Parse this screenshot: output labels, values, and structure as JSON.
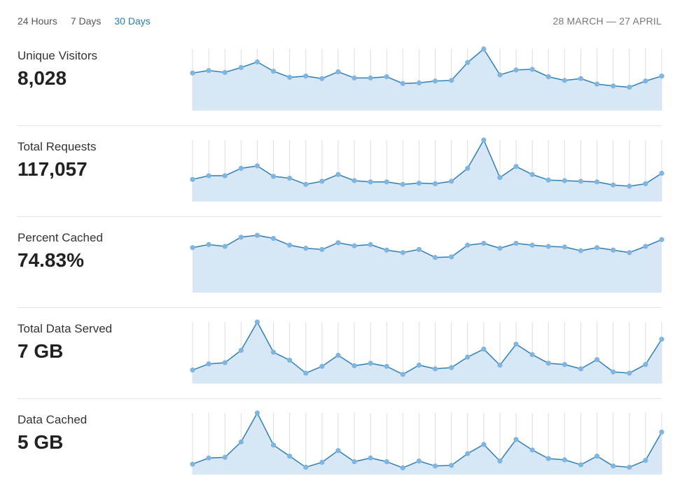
{
  "tabs": [
    {
      "label": "24 Hours",
      "active": false
    },
    {
      "label": "7 Days",
      "active": false
    },
    {
      "label": "30 Days",
      "active": true
    }
  ],
  "date_range": "28 MARCH — 27 APRIL",
  "colors": {
    "line": "#2f7fb5",
    "fill": "#d7e7f6",
    "dot": "#7fb5de",
    "grid": "#dddddd",
    "active_tab": "#2a7bb7"
  },
  "metrics": [
    {
      "label": "Unique Visitors",
      "value": "8,028"
    },
    {
      "label": "Total Requests",
      "value": "117,057"
    },
    {
      "label": "Percent Cached",
      "value": "74.83%"
    },
    {
      "label": "Total Data Served",
      "value": "7 GB"
    },
    {
      "label": "Data Cached",
      "value": "5 GB"
    }
  ],
  "chart_data": [
    {
      "type": "area",
      "title": "Unique Visitors",
      "x_count": 30,
      "ylim": [
        0,
        100
      ],
      "grid": true,
      "values": [
        61,
        65,
        62,
        70,
        79,
        64,
        54,
        56,
        52,
        63,
        53,
        53,
        55,
        44,
        45,
        48,
        49,
        78,
        100,
        58,
        66,
        67,
        55,
        49,
        52,
        43,
        40,
        38,
        48,
        56
      ]
    },
    {
      "type": "area",
      "title": "Total Requests",
      "x_count": 30,
      "ylim": [
        0,
        100
      ],
      "grid": true,
      "values": [
        36,
        42,
        42,
        54,
        58,
        41,
        38,
        28,
        33,
        44,
        34,
        32,
        32,
        28,
        30,
        29,
        33,
        54,
        100,
        39,
        57,
        44,
        35,
        34,
        33,
        32,
        27,
        25,
        29,
        46
      ]
    },
    {
      "type": "area",
      "title": "Percent Cached",
      "x_count": 30,
      "ylim": [
        0,
        100
      ],
      "grid": false,
      "values": [
        73,
        78,
        75,
        90,
        93,
        88,
        77,
        72,
        70,
        81,
        76,
        78,
        69,
        65,
        70,
        57,
        58,
        77,
        80,
        72,
        80,
        77,
        75,
        74,
        68,
        73,
        69,
        65,
        75,
        86
      ]
    },
    {
      "type": "area",
      "title": "Total Data Served",
      "x_count": 30,
      "ylim": [
        0,
        100
      ],
      "grid": true,
      "values": [
        22,
        32,
        34,
        54,
        100,
        51,
        38,
        17,
        28,
        46,
        29,
        33,
        28,
        15,
        30,
        24,
        26,
        43,
        56,
        30,
        64,
        47,
        33,
        31,
        24,
        39,
        19,
        17,
        31,
        72
      ]
    },
    {
      "type": "area",
      "title": "Data Cached",
      "x_count": 30,
      "ylim": [
        0,
        100
      ],
      "grid": true,
      "values": [
        17,
        27,
        28,
        53,
        100,
        48,
        30,
        12,
        20,
        39,
        21,
        27,
        21,
        11,
        22,
        14,
        15,
        34,
        49,
        22,
        57,
        40,
        26,
        24,
        16,
        30,
        14,
        12,
        23,
        69
      ]
    }
  ]
}
